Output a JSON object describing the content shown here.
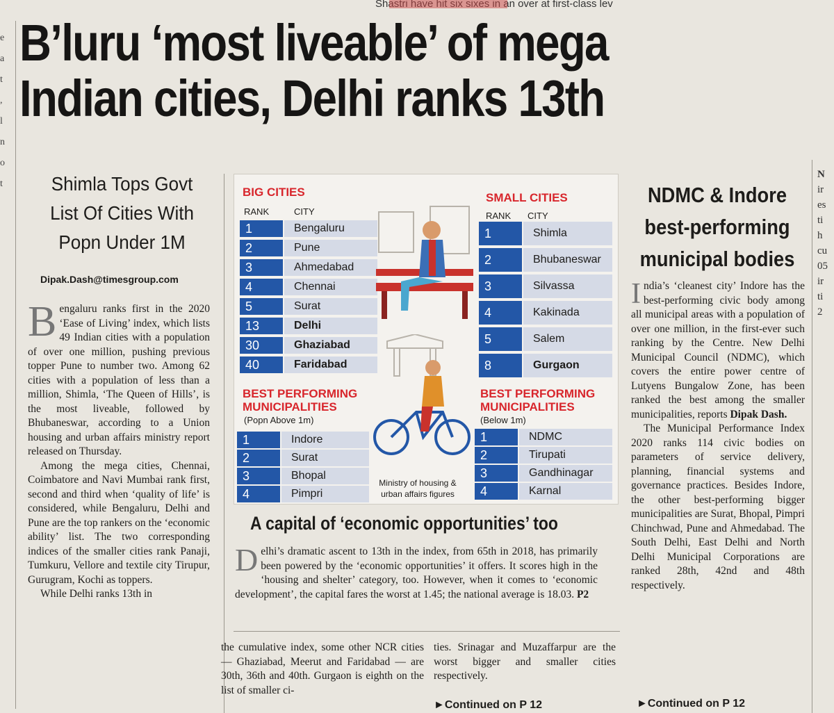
{
  "top_strip": "Shastri have hit six sixes in an over at first-class lev",
  "headline": {
    "line1": "B’luru ‘most liveable’ of mega",
    "line2": "Indian cities, Delhi ranks 13th"
  },
  "deck": [
    "Shimla Tops Govt",
    "List Of Cities With",
    "Popn Under 1M"
  ],
  "byline": "Dipak.Dash@timesgroup.com",
  "story": {
    "dropcap": "B",
    "p1": "engaluru ranks first in the 2020 ‘Ease of Living’ index, which lists 49 Indian cities with a population of over one million, pushing previous topper Pune to number two. Among 62 cities with a population of less than a million, Shimla, ‘The Queen of Hills’, is the most liveable, followed by Bhubaneswar, according to a Union housing and urban affairs ministry report released on Thursday.",
    "p2": "Among the mega cities, Chennai, Coimbatore and Navi Mumbai rank first, second and third when ‘quality of life’ is considered, while Bengaluru, Delhi and Pune are the top rankers on the ‘economic ability’ list. The two corresponding indices of the smaller cities rank Panaji, Tumkuru, Vellore and textile city Tirupur, Gurugram, Kochi as toppers.",
    "p3": "While Delhi ranks 13th in"
  },
  "infographic": {
    "big_cities": {
      "title": "BIG CITIES",
      "rank_label": "RANK",
      "city_label": "CITY",
      "rows": [
        {
          "rank": "1",
          "city": "Bengaluru"
        },
        {
          "rank": "2",
          "city": "Pune"
        },
        {
          "rank": "3",
          "city": "Ahmedabad"
        },
        {
          "rank": "4",
          "city": "Chennai"
        },
        {
          "rank": "5",
          "city": "Surat"
        },
        {
          "rank": "13",
          "city": "Delhi"
        },
        {
          "rank": "30",
          "city": "Ghaziabad"
        },
        {
          "rank": "40",
          "city": "Faridabad"
        }
      ]
    },
    "small_cities": {
      "title": "SMALL CITIES",
      "rank_label": "RANK",
      "city_label": "CITY",
      "rows": [
        {
          "rank": "1",
          "city": "Shimla"
        },
        {
          "rank": "2",
          "city": "Bhubaneswar"
        },
        {
          "rank": "3",
          "city": "Silvassa"
        },
        {
          "rank": "4",
          "city": "Kakinada"
        },
        {
          "rank": "5",
          "city": "Salem"
        },
        {
          "rank": "8",
          "city": "Gurgaon"
        }
      ]
    },
    "muni_big": {
      "title1": "BEST PERFORMING",
      "title2": "MUNICIPALITIES",
      "note": "(Popn Above 1m)",
      "rows": [
        {
          "rank": "1",
          "city": "Indore"
        },
        {
          "rank": "2",
          "city": "Surat"
        },
        {
          "rank": "3",
          "city": "Bhopal"
        },
        {
          "rank": "4",
          "city": "Pimpri"
        }
      ]
    },
    "muni_small": {
      "title1": "BEST PERFORMING",
      "title2": "MUNICIPALITIES",
      "note": "(Below 1m)",
      "rows": [
        {
          "rank": "1",
          "city": "NDMC"
        },
        {
          "rank": "2",
          "city": "Tirupati"
        },
        {
          "rank": "3",
          "city": "Gandhinagar"
        },
        {
          "rank": "4",
          "city": "Karnal"
        }
      ]
    },
    "caption": [
      "Ministry of housing &",
      "urban affairs figures"
    ],
    "colors": {
      "rank_bg": "#2357a7",
      "city_bg": "#d5dae6",
      "section_title": "#d8262c"
    }
  },
  "sidebar": {
    "heading": [
      "NDMC & Indore",
      "best-performing",
      "municipal bodies"
    ],
    "dropcap": "I",
    "p1": "ndia’s ‘cleanest city’ Indore has the best-performing civic body among all municipal areas with a population of over one million, in the first-ever such ranking by the Centre. New Delhi Municipal Council (NDMC), which covers the entire power centre of Lutyens Bungalow Zone, has been ranked the best among the smaller municipalities, reports",
    "p1_author": "Dipak Dash.",
    "p2": "The Municipal Performance Index 2020 ranks 114 civic bodies on parameters of service delivery, planning, financial systems and governance practices. Besides Indore, the other best-performing bigger municipalities are Surat, Bhopal, Pimpri Chinchwad, Pune and Ahmedabad. The South Delhi, East Delhi and North Delhi Municipal Corporations are ranked 28th, 42nd and 48th respectively.",
    "continued": "Continued on P 12"
  },
  "delhi_box": {
    "heading": "A capital of ‘economic opportunities’ too",
    "dropcap": "D",
    "text": "elhi’s dramatic ascent to 13th in the index, from 65th in 2018, has primarily been powered by the ‘economic opportunities’ it offers. It scores high in the ‘housing and shelter’ category, too. However, when it comes to ‘economic development’, the capital fares the worst at 1.45; the national average is 18.03.",
    "ref": "P2"
  },
  "col_mid_a": "the cumulative index, some other NCR cities — Ghaziabad, Meerut and Faridabad — are 30th, 36th and 40th. Gurgaon is eighth on the list of smaller ci-",
  "col_mid_b": "ties. Srinagar and Muzaffarpur are the worst bigger and smaller cities respectively.",
  "continued_mid": "Continued on P 12",
  "left_edge": [
    "e",
    "a",
    "t",
    ",",
    "l",
    "n",
    "o",
    "t"
  ],
  "right_edge": [
    "N",
    "ir",
    "es",
    "ti",
    "h",
    "cu",
    "05",
    "ir",
    "ti",
    "2"
  ]
}
